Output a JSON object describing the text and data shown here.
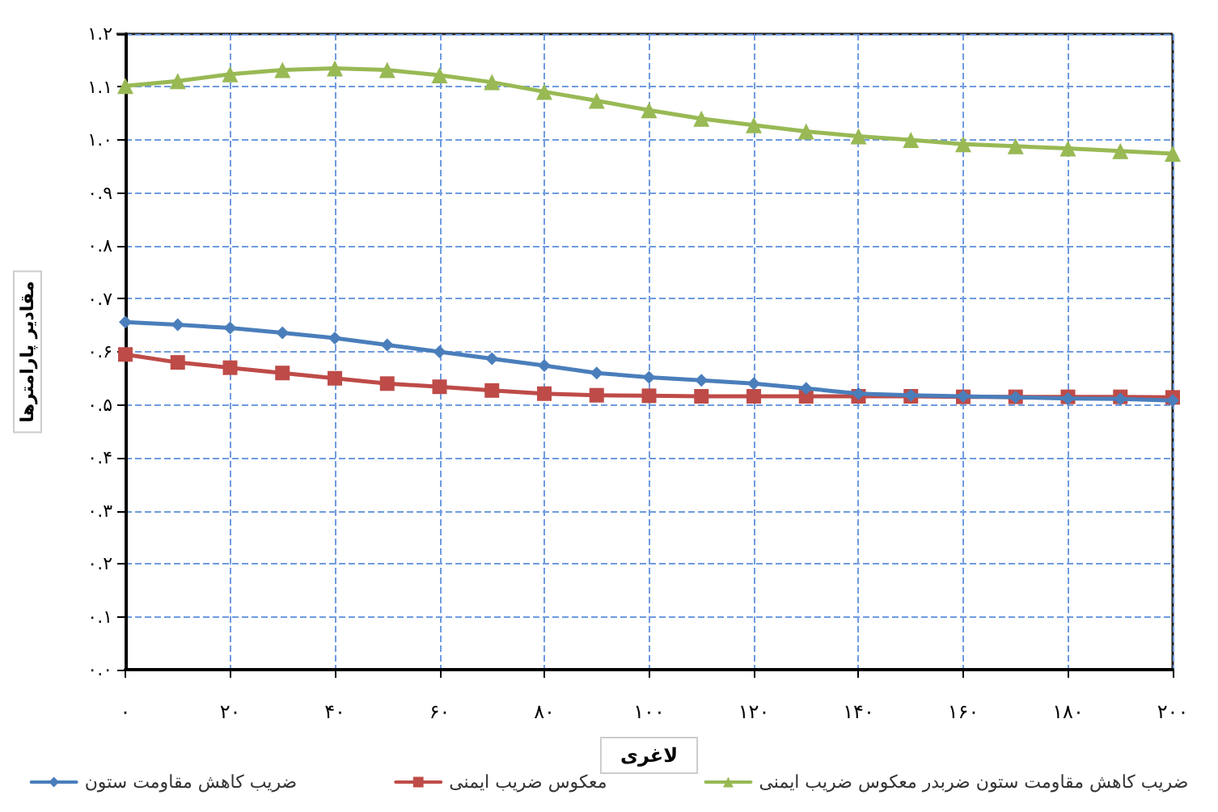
{
  "chart_data": {
    "type": "line",
    "xlabel": "لاغری",
    "ylabel": "مقادیر پارامترها",
    "x": [
      0,
      10,
      20,
      30,
      40,
      50,
      60,
      70,
      80,
      90,
      100,
      110,
      120,
      130,
      140,
      150,
      160,
      170,
      180,
      190,
      200
    ],
    "series": [
      {
        "name": "ضریب کاهش مقاومت ستون",
        "color": "#4a7ebb",
        "marker": "diamond",
        "values": [
          0.656,
          0.651,
          0.645,
          0.636,
          0.626,
          0.613,
          0.6,
          0.587,
          0.574,
          0.56,
          0.552,
          0.546,
          0.54,
          0.531,
          0.521,
          0.518,
          0.516,
          0.514,
          0.512,
          0.511,
          0.508
        ]
      },
      {
        "name": "معکوس ضریب ایمنی",
        "color": "#be4b48",
        "marker": "square",
        "values": [
          0.595,
          0.58,
          0.57,
          0.56,
          0.55,
          0.54,
          0.534,
          0.527,
          0.521,
          0.518,
          0.517,
          0.516,
          0.516,
          0.516,
          0.516,
          0.516,
          0.515,
          0.515,
          0.515,
          0.515,
          0.514
        ]
      },
      {
        "name": "ضریب کاهش مقاومت ستون ضربدر معکوس ضریب ایمنی",
        "color": "#98b954",
        "marker": "triangle",
        "values": [
          1.102,
          1.111,
          1.124,
          1.132,
          1.135,
          1.132,
          1.122,
          1.109,
          1.091,
          1.074,
          1.056,
          1.04,
          1.028,
          1.016,
          1.007,
          1.0,
          0.992,
          0.988,
          0.984,
          0.979,
          0.974
        ]
      }
    ],
    "xlim": [
      0,
      200
    ],
    "xticks": [
      {
        "value": 0,
        "label": "۰"
      },
      {
        "value": 20,
        "label": "۲۰"
      },
      {
        "value": 40,
        "label": "۴۰"
      },
      {
        "value": 60,
        "label": "۶۰"
      },
      {
        "value": 80,
        "label": "۸۰"
      },
      {
        "value": 100,
        "label": "۱۰۰"
      },
      {
        "value": 120,
        "label": "۱۲۰"
      },
      {
        "value": 140,
        "label": "۱۴۰"
      },
      {
        "value": 160,
        "label": "۱۶۰"
      },
      {
        "value": 180,
        "label": "۱۸۰"
      },
      {
        "value": 200,
        "label": "۲۰۰"
      }
    ],
    "ylim": [
      0,
      1.2
    ],
    "yticks": [
      {
        "value": 0,
        "label": "۰.۰"
      },
      {
        "value": 0.1,
        "label": "۰.۱"
      },
      {
        "value": 0.2,
        "label": "۰.۲"
      },
      {
        "value": 0.3,
        "label": "۰.۳"
      },
      {
        "value": 0.4,
        "label": "۰.۴"
      },
      {
        "value": 0.5,
        "label": "۰.۵"
      },
      {
        "value": 0.6,
        "label": "۰.۶"
      },
      {
        "value": 0.7,
        "label": "۰.۷"
      },
      {
        "value": 0.8,
        "label": "۰.۸"
      },
      {
        "value": 0.9,
        "label": "۰.۹"
      },
      {
        "value": 1.0,
        "label": "۱.۰"
      },
      {
        "value": 1.1,
        "label": "۱.۱"
      },
      {
        "value": 1.2,
        "label": "۱.۲"
      }
    ],
    "grid": true,
    "legend": "bottom",
    "line_style": "solid"
  }
}
